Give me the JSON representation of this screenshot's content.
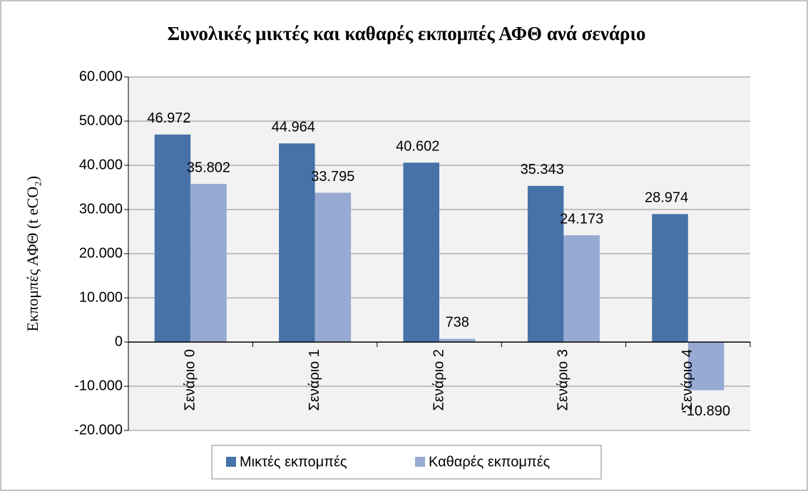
{
  "chart_data": {
    "type": "bar",
    "title": "Συνολικές μικτές και καθαρές εκπομπές ΑΦΘ ανά σενάριο",
    "y_label": "Εκπομπές ΑΦΘ (t eCO₂)",
    "categories": [
      "Σενάριο 0",
      "Σενάριο 1",
      "Σενάριο 2",
      "Σενάριο 3",
      "Σενάριο 4"
    ],
    "series": [
      {
        "name": "Μικτές εκπομπές",
        "color": "#4672a8",
        "values": [
          46972,
          44964,
          40602,
          35343,
          28974
        ],
        "value_labels": [
          "46.972",
          "44.964",
          "40.602",
          "35.343",
          "28.974"
        ]
      },
      {
        "name": "Καθαρές εκπομπές",
        "color": "#97aad3",
        "values": [
          35802,
          33795,
          738,
          24173,
          -10890
        ],
        "value_labels": [
          "35.802",
          "33.795",
          "738",
          "24.173",
          "-10.890"
        ]
      }
    ],
    "ylim": [
      -20000,
      60000
    ],
    "yticks": [
      {
        "value": -20000,
        "label": "-20.000"
      },
      {
        "value": -10000,
        "label": "-10.000"
      },
      0,
      {
        "value": 10000,
        "label": "10.000"
      },
      {
        "value": 20000,
        "label": "20.000"
      },
      {
        "value": 30000,
        "label": "30.000"
      },
      {
        "value": 40000,
        "label": "40.000"
      },
      {
        "value": 50000,
        "label": "50.000"
      },
      {
        "value": 60000,
        "label": "60.000"
      }
    ],
    "grid": true,
    "legend": "bottom"
  }
}
